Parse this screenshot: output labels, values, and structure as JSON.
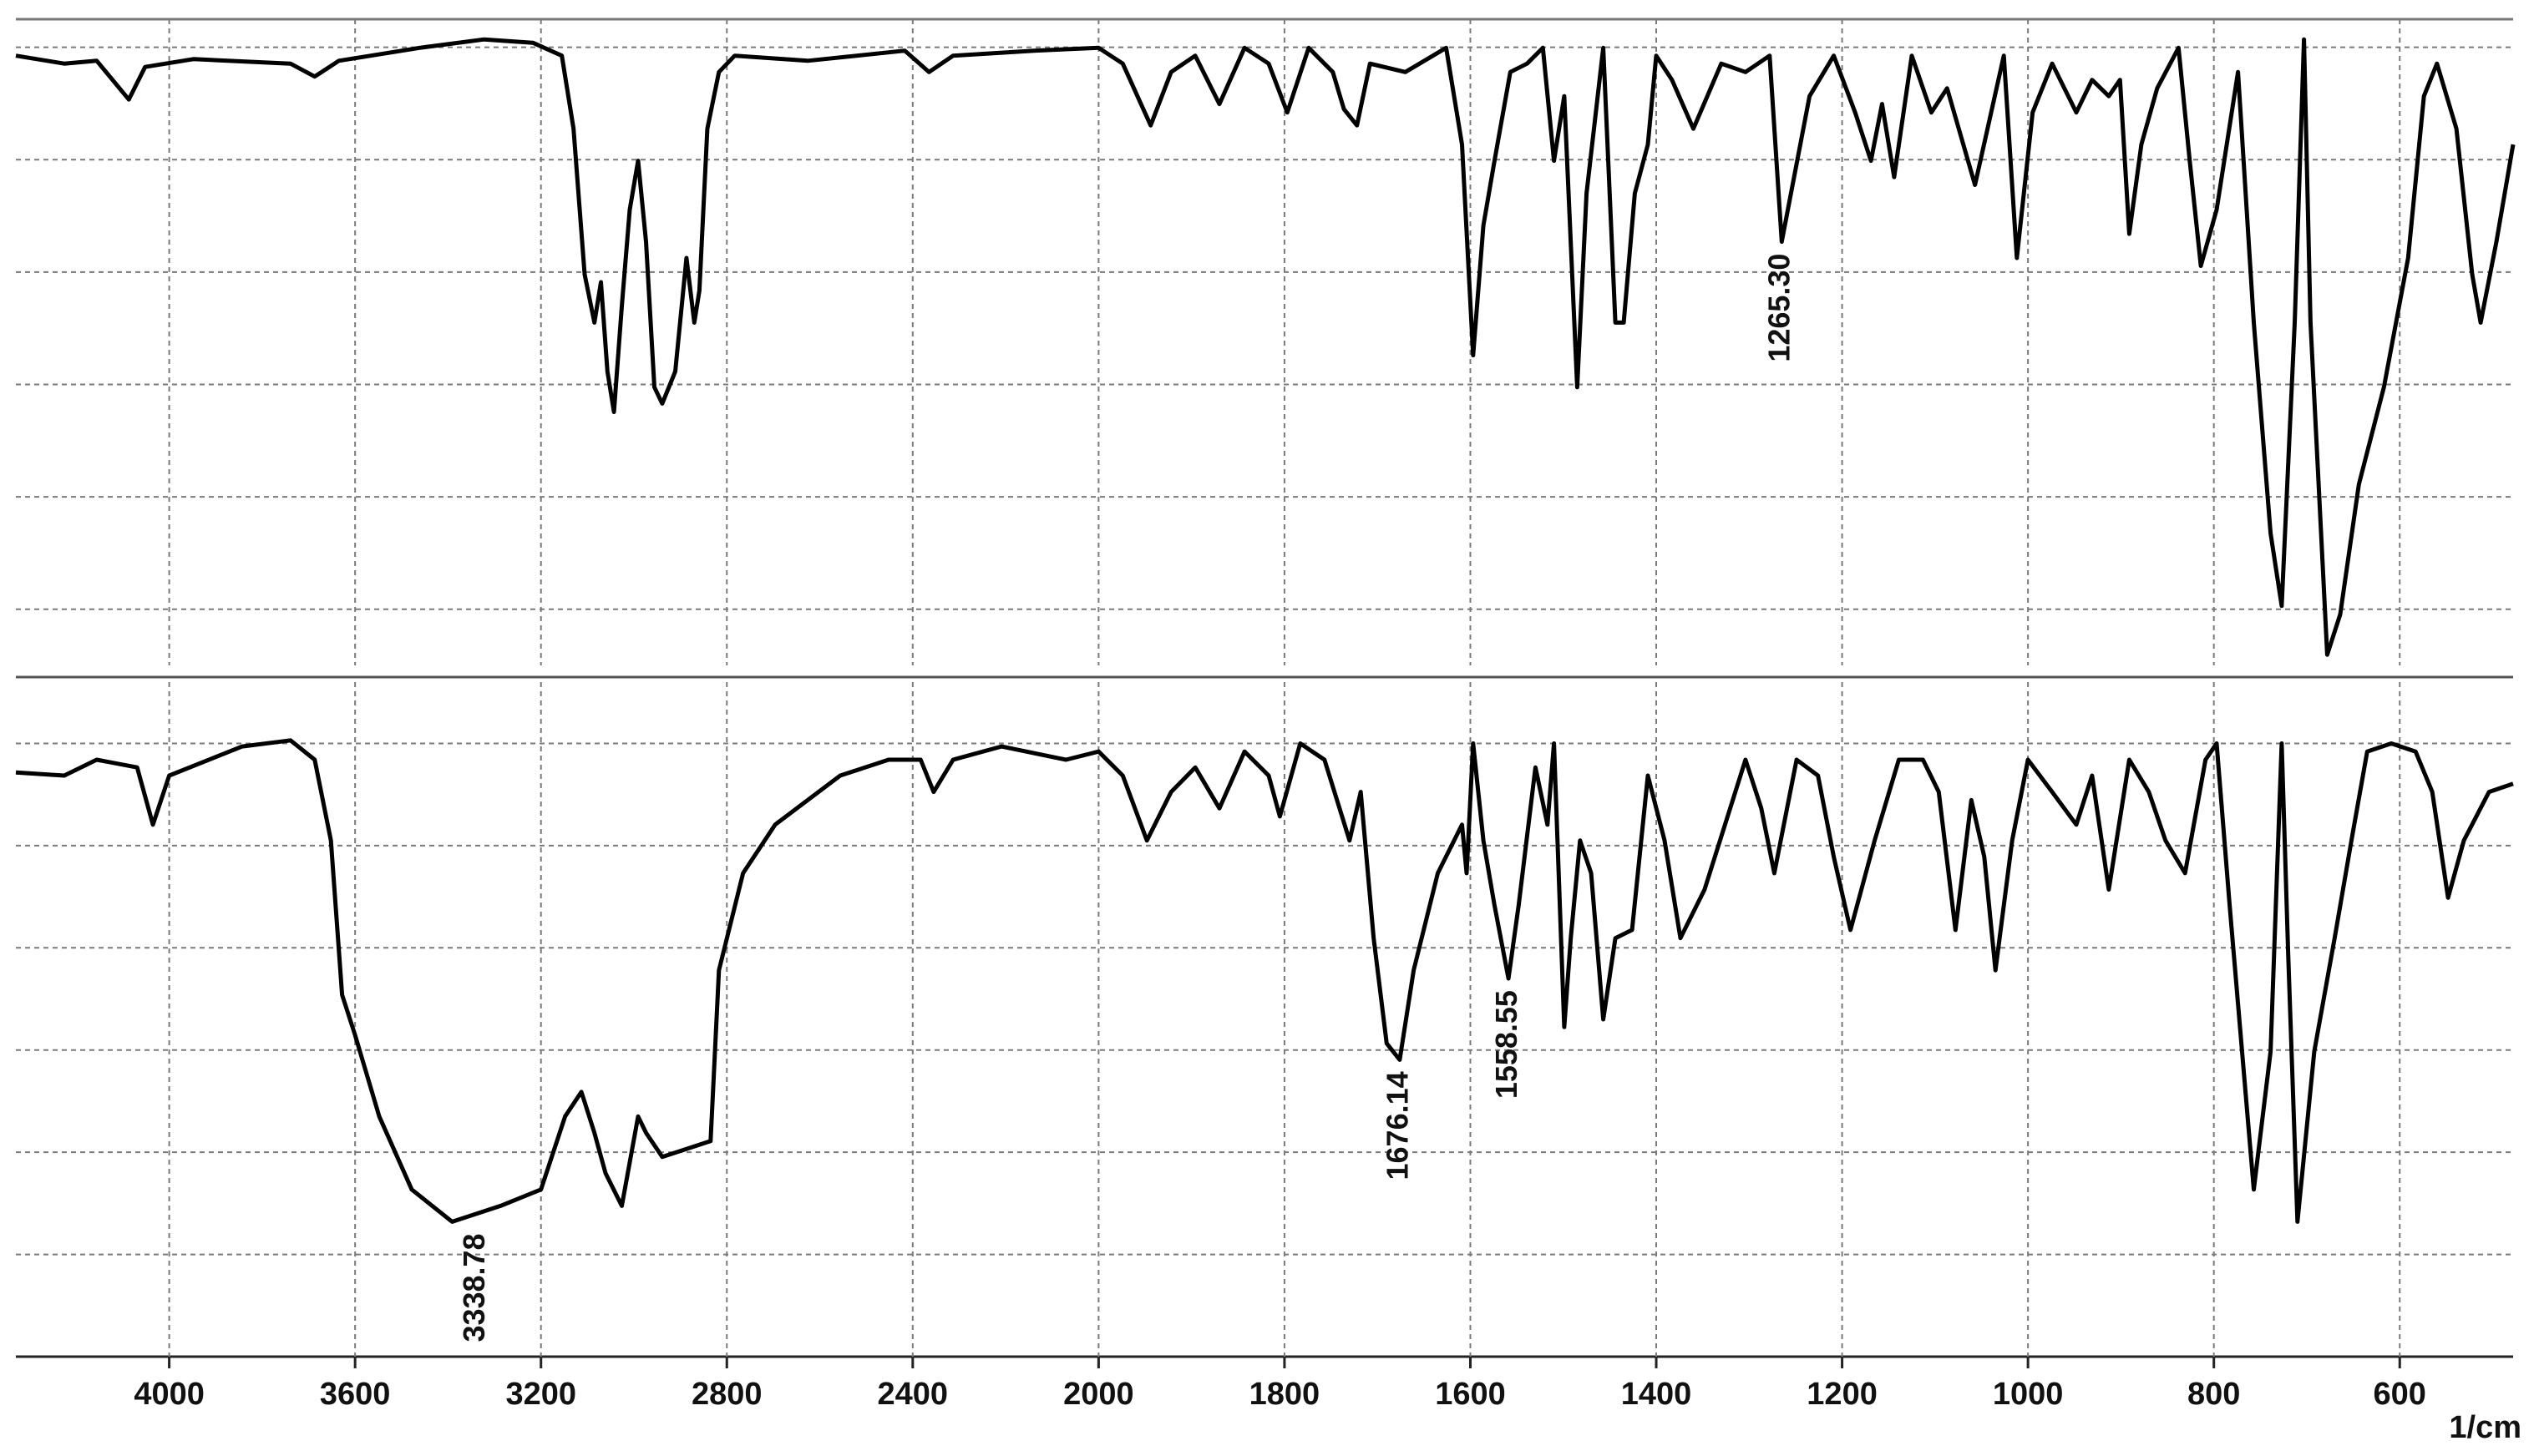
{
  "chart_data": [
    {
      "type": "line",
      "color": "#000000",
      "xlim": [
        4330,
        478
      ],
      "xbreak": 2000,
      "ylim": [
        -10,
        105
      ],
      "ygrid": [
        0,
        20,
        40,
        60,
        80,
        100
      ],
      "xgrid": [
        4000,
        3600,
        3200,
        2800,
        2400,
        2000,
        1800,
        1600,
        1400,
        1200,
        1000,
        800,
        600
      ],
      "x": [
        4330,
        4226,
        4156,
        4087,
        4052,
        3948,
        3739,
        3687,
        3635,
        3461,
        3322,
        3217,
        3155,
        3130,
        3106,
        3085,
        3071,
        3057,
        3043,
        3026,
        3009,
        2991,
        2974,
        2956,
        2939,
        2911,
        2887,
        2870,
        2859,
        2842,
        2817,
        2783,
        2626,
        2417,
        2365,
        2313,
        2139,
        2000,
        1974,
        1944,
        1922,
        1896,
        1870,
        1843,
        1817,
        1797,
        1774,
        1748,
        1736,
        1722,
        1708,
        1670,
        1626,
        1609,
        1597,
        1586,
        1574,
        1557,
        1539,
        1522,
        1510,
        1499,
        1485,
        1475,
        1457,
        1444,
        1435,
        1423,
        1409,
        1400,
        1383,
        1360,
        1330,
        1304,
        1278,
        1265,
        1235,
        1209,
        1186,
        1169,
        1157,
        1144,
        1125,
        1104,
        1087,
        1057,
        1026,
        1012,
        995,
        974,
        948,
        931,
        913,
        901,
        891,
        878,
        861,
        838,
        826,
        814,
        797,
        774,
        757,
        739,
        727,
        713,
        703,
        696,
        678,
        664,
        644,
        617,
        591,
        574,
        560,
        539,
        522,
        513,
        496,
        478
      ],
      "values": [
        98.5,
        97.1,
        97.6,
        90.7,
        96.5,
        97.9,
        97.1,
        94.8,
        97.6,
        99.9,
        101.4,
        100.8,
        98.5,
        85.5,
        59.6,
        51.0,
        58.2,
        42.3,
        35.1,
        53.9,
        71.1,
        79.8,
        65.4,
        39.5,
        36.6,
        42.3,
        62.5,
        51.0,
        56.7,
        85.5,
        95.6,
        98.5,
        97.6,
        99.4,
        95.6,
        98.5,
        99.4,
        99.9,
        97.1,
        86.1,
        95.6,
        98.5,
        89.9,
        99.9,
        97.1,
        88.4,
        99.9,
        95.6,
        89.0,
        86.1,
        97.1,
        95.6,
        99.9,
        82.7,
        45.2,
        68.3,
        79.8,
        95.6,
        97.1,
        99.9,
        79.8,
        91.3,
        39.5,
        74.0,
        99.9,
        51.0,
        51.0,
        74.0,
        82.7,
        98.5,
        94.2,
        85.5,
        97.1,
        95.6,
        98.5,
        65.4,
        91.3,
        98.5,
        88.4,
        79.8,
        89.9,
        76.9,
        98.5,
        88.4,
        92.7,
        75.5,
        98.5,
        62.5,
        88.4,
        97.1,
        88.4,
        94.2,
        91.3,
        94.2,
        66.8,
        82.7,
        92.7,
        99.9,
        79.8,
        61.1,
        71.1,
        95.6,
        51.0,
        13.5,
        0.6,
        51.0,
        101.4,
        51.0,
        -8.1,
        -0.9,
        22.2,
        39.5,
        62.5,
        91.3,
        97.1,
        85.5,
        59.6,
        51.0,
        65.4,
        82.7
      ],
      "annotations": [
        {
          "label": "1265.30",
          "x": 1265.3,
          "y": 65.4
        }
      ]
    },
    {
      "type": "line",
      "color": "#000000",
      "xlim": [
        4330,
        478
      ],
      "xbreak": 2000,
      "ylim": [
        -20,
        112
      ],
      "ygrid": [
        0,
        20,
        40,
        60,
        80,
        100
      ],
      "xticks": [
        4000,
        3600,
        3200,
        2800,
        2400,
        2000,
        1800,
        1600,
        1400,
        1200,
        1000,
        800,
        600
      ],
      "xlabel": "1/cm",
      "x": [
        4330,
        4226,
        4156,
        4069,
        4035,
        4000,
        3843,
        3739,
        3687,
        3652,
        3628,
        3600,
        3548,
        3478,
        3391,
        3287,
        3200,
        3148,
        3113,
        3085,
        3061,
        3026,
        2991,
        2974,
        2939,
        2835,
        2817,
        2765,
        2696,
        2556,
        2452,
        2383,
        2355,
        2313,
        2209,
        2070,
        2000,
        1974,
        1948,
        1922,
        1896,
        1870,
        1843,
        1817,
        1805,
        1783,
        1757,
        1730,
        1718,
        1704,
        1690,
        1676,
        1661,
        1635,
        1609,
        1604,
        1597,
        1586,
        1574,
        1559,
        1548,
        1530,
        1517,
        1510,
        1499,
        1492,
        1482,
        1470,
        1457,
        1444,
        1426,
        1409,
        1391,
        1374,
        1348,
        1304,
        1287,
        1273,
        1249,
        1226,
        1209,
        1191,
        1165,
        1139,
        1113,
        1096,
        1078,
        1061,
        1047,
        1035,
        1017,
        1000,
        974,
        948,
        931,
        913,
        891,
        870,
        852,
        831,
        809,
        797,
        783,
        757,
        739,
        727,
        720,
        710,
        692,
        670,
        652,
        635,
        609,
        583,
        565,
        548,
        531,
        504,
        478
      ],
      "values": [
        94.3,
        93.7,
        96.8,
        95.3,
        84.1,
        93.7,
        99.4,
        100.6,
        96.8,
        81.0,
        50.8,
        42.9,
        27.0,
        12.7,
        6.4,
        9.5,
        12.7,
        27.0,
        31.8,
        23.8,
        15.9,
        9.5,
        27.0,
        23.8,
        19.1,
        22.2,
        55.6,
        74.6,
        84.1,
        93.7,
        96.8,
        96.8,
        90.5,
        96.8,
        99.4,
        96.8,
        98.4,
        93.7,
        81.0,
        90.5,
        95.3,
        87.3,
        98.4,
        93.7,
        85.7,
        100.0,
        96.8,
        81.0,
        90.5,
        61.9,
        41.3,
        38.1,
        55.6,
        74.6,
        84.1,
        74.6,
        100.0,
        81.0,
        68.3,
        54.0,
        68.3,
        95.3,
        84.1,
        100.0,
        44.5,
        61.9,
        81.0,
        74.6,
        46.0,
        61.9,
        63.5,
        93.7,
        81.0,
        61.9,
        71.4,
        96.8,
        87.3,
        74.6,
        96.8,
        93.7,
        77.8,
        63.5,
        81.0,
        96.8,
        96.8,
        90.5,
        63.5,
        88.9,
        77.8,
        55.6,
        81.0,
        96.8,
        90.5,
        84.1,
        93.7,
        71.4,
        96.8,
        90.5,
        81.0,
        74.6,
        96.8,
        100.0,
        68.3,
        12.7,
        39.7,
        100.0,
        58.7,
        6.4,
        39.7,
        61.9,
        81.0,
        98.4,
        100.0,
        98.4,
        90.5,
        69.8,
        81.0,
        90.5,
        92.1
      ],
      "annotations": [
        {
          "label": "3338.78",
          "x": 3338.78,
          "y": 6.4
        },
        {
          "label": "1676.14",
          "x": 1676.14,
          "y": 38.1
        },
        {
          "label": "1558.55",
          "x": 1558.55,
          "y": 54.0
        }
      ]
    }
  ]
}
